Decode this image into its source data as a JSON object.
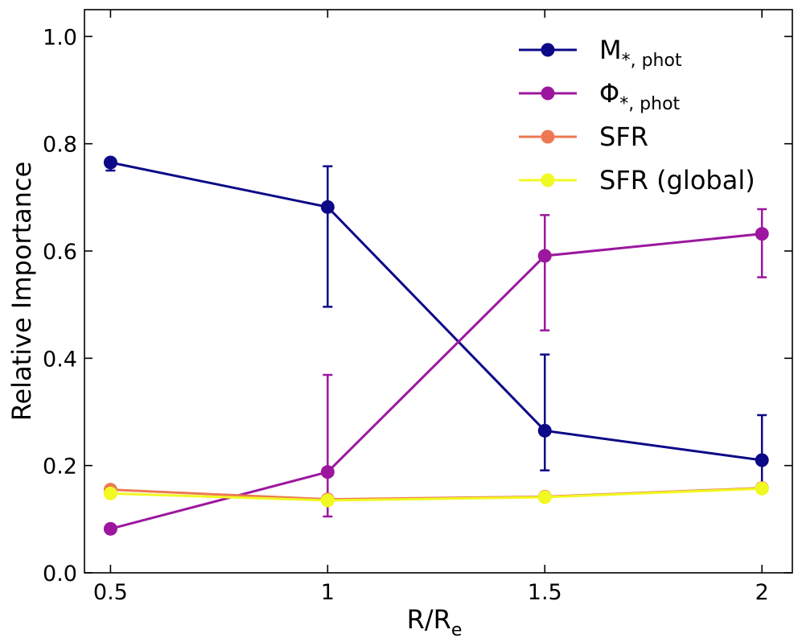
{
  "chart_data": {
    "type": "line",
    "title": "",
    "xlabel": {
      "main": "R/R",
      "sub": "e"
    },
    "ylabel": "Relative Importance",
    "x": [
      0.5,
      1,
      1.5,
      2
    ],
    "x_tick_labels": [
      "0.5",
      "1",
      "1.5",
      "2"
    ],
    "xlim": [
      0.44,
      2.07
    ],
    "ylim": [
      0.0,
      1.05
    ],
    "y_ticks": [
      0.0,
      0.2,
      0.4,
      0.6,
      0.8,
      1.0
    ],
    "y_tick_labels": [
      "0.0",
      "0.2",
      "0.4",
      "0.6",
      "0.8",
      "1.0"
    ],
    "grid": false,
    "legend_position": "top-right",
    "series": [
      {
        "name": "M*,phot",
        "label_main": "M",
        "label_sub": "*, phot",
        "color": "#0d0887",
        "values": [
          0.765,
          0.682,
          0.265,
          0.21
        ],
        "err_low": [
          0.75,
          0.496,
          0.191,
          0.165
        ],
        "err_high": [
          0.772,
          0.758,
          0.407,
          0.294
        ]
      },
      {
        "name": "Φ*,phot",
        "label_main": "Φ",
        "label_sub": "*, phot",
        "color": "#9c179e",
        "values": [
          0.082,
          0.188,
          0.591,
          0.632
        ],
        "err_low": [
          0.082,
          0.105,
          0.452,
          0.551
        ],
        "err_high": [
          0.082,
          0.369,
          0.667,
          0.678
        ]
      },
      {
        "name": "SFR",
        "label_main": "SFR",
        "label_sub": "",
        "color": "#ed7953",
        "values": [
          0.155,
          0.137,
          0.142,
          0.158
        ],
        "err_low": [
          0.148,
          0.13,
          0.136,
          0.152
        ],
        "err_high": [
          0.162,
          0.144,
          0.148,
          0.165
        ]
      },
      {
        "name": "SFR (global)",
        "label_main": "SFR (global)",
        "label_sub": "",
        "color": "#f0f921",
        "values": [
          0.148,
          0.135,
          0.141,
          0.157
        ],
        "err_low": [
          0.142,
          0.128,
          0.135,
          0.151
        ],
        "err_high": [
          0.154,
          0.142,
          0.147,
          0.163
        ]
      }
    ]
  }
}
